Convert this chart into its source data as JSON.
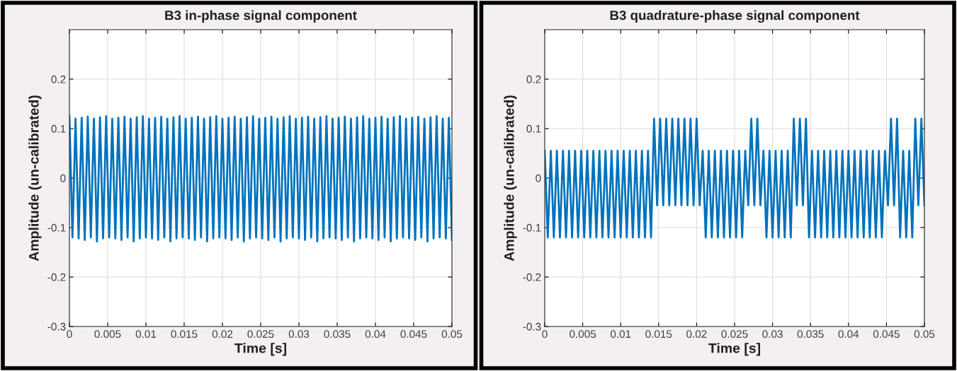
{
  "chart_data": [
    {
      "type": "line",
      "title": "B3 in-phase signal component",
      "xlabel": "Time [s]",
      "ylabel": "Amplitude (un-calibrated)",
      "xlim": [
        0,
        0.05
      ],
      "ylim": [
        -0.3,
        0.3
      ],
      "xticks": [
        0,
        0.005,
        0.01,
        0.015,
        0.02,
        0.025,
        0.03,
        0.035,
        0.04,
        0.045,
        0.05
      ],
      "yticks": [
        -0.3,
        -0.2,
        -0.1,
        0,
        0.1,
        0.2
      ],
      "grid": true,
      "x": [
        0,
        0.0004,
        0.0008,
        0.0012,
        0.0016,
        0.002,
        0.0024,
        0.0028,
        0.0032,
        0.0036,
        0.004,
        0.0044,
        0.0048,
        0.0052,
        0.0056,
        0.006,
        0.0064,
        0.0068,
        0.0072,
        0.0076,
        0.008,
        0.0084,
        0.0088,
        0.0092,
        0.0096,
        0.01,
        0.0104,
        0.0108,
        0.0112,
        0.0116,
        0.012,
        0.0124,
        0.0128,
        0.0132,
        0.0136,
        0.014,
        0.0144,
        0.0148,
        0.0152,
        0.0156,
        0.016,
        0.0164,
        0.0168,
        0.0172,
        0.0176,
        0.018,
        0.0184,
        0.0188,
        0.0192,
        0.0196,
        0.02,
        0.0204,
        0.0208,
        0.0212,
        0.0216,
        0.022,
        0.0224,
        0.0228,
        0.0232,
        0.0236,
        0.024,
        0.0244,
        0.0248,
        0.0252,
        0.0256,
        0.026,
        0.0264,
        0.0268,
        0.0272,
        0.0276,
        0.028,
        0.0284,
        0.0288,
        0.0292,
        0.0296,
        0.03,
        0.0304,
        0.0308,
        0.0312,
        0.0316,
        0.032,
        0.0324,
        0.0328,
        0.0332,
        0.0336,
        0.034,
        0.0344,
        0.0348,
        0.0352,
        0.0356,
        0.036,
        0.0364,
        0.0368,
        0.0372,
        0.0376,
        0.038,
        0.0384,
        0.0388,
        0.0392,
        0.0396,
        0.04,
        0.0404,
        0.0408,
        0.0412,
        0.0416,
        0.042,
        0.0424,
        0.0428,
        0.0432,
        0.0436,
        0.044,
        0.0444,
        0.0448,
        0.0452,
        0.0456,
        0.046,
        0.0464,
        0.0468,
        0.0472,
        0.0476,
        0.048,
        0.0484,
        0.0488,
        0.0492,
        0.0496,
        0.05
      ],
      "series": [
        {
          "color": "#0072bd",
          "values": [
            0.125,
            -0.12,
            0.12,
            -0.122,
            0.122,
            -0.125,
            0.124,
            -0.12,
            0.12,
            -0.128,
            0.123,
            -0.122,
            0.125,
            -0.12,
            0.12,
            -0.122,
            0.122,
            -0.125,
            0.124,
            -0.12,
            0.12,
            -0.128,
            0.123,
            -0.122,
            0.125,
            -0.12,
            0.12,
            -0.122,
            0.122,
            -0.125,
            0.124,
            -0.12,
            0.12,
            -0.128,
            0.123,
            -0.122,
            0.125,
            -0.12,
            0.12,
            -0.122,
            0.122,
            -0.125,
            0.124,
            -0.12,
            0.12,
            -0.128,
            0.123,
            -0.122,
            0.125,
            -0.12,
            0.12,
            -0.122,
            0.122,
            -0.125,
            0.124,
            -0.12,
            0.12,
            -0.128,
            0.123,
            -0.122,
            0.125,
            -0.12,
            0.12,
            -0.122,
            0.122,
            -0.125,
            0.124,
            -0.12,
            0.12,
            -0.128,
            0.123,
            -0.122,
            0.125,
            -0.12,
            0.12,
            -0.122,
            0.122,
            -0.125,
            0.124,
            -0.12,
            0.12,
            -0.128,
            0.123,
            -0.122,
            0.125,
            -0.12,
            0.12,
            -0.122,
            0.122,
            -0.125,
            0.124,
            -0.12,
            0.12,
            -0.128,
            0.123,
            -0.122,
            0.125,
            -0.12,
            0.12,
            -0.122,
            0.122,
            -0.125,
            0.124,
            -0.12,
            0.12,
            -0.128,
            0.123,
            -0.122,
            0.125,
            -0.12,
            0.12,
            -0.122,
            0.122,
            -0.125,
            0.124,
            -0.12,
            0.12,
            -0.128,
            0.123,
            -0.122,
            0.125,
            -0.12,
            0.12,
            -0.122,
            0.122,
            -0.125
          ]
        }
      ]
    },
    {
      "type": "line",
      "title": "B3 quadrature-phase signal component",
      "xlabel": "Time [s]",
      "ylabel": "Amplitude (un-calibrated)",
      "xlim": [
        0,
        0.05
      ],
      "ylim": [
        -0.3,
        0.3
      ],
      "xticks": [
        0,
        0.005,
        0.01,
        0.015,
        0.02,
        0.025,
        0.03,
        0.035,
        0.04,
        0.045,
        0.05
      ],
      "yticks": [
        -0.3,
        -0.2,
        -0.1,
        0,
        0.1,
        0.2
      ],
      "grid": true,
      "x": [
        0,
        0.0004,
        0.0008,
        0.0012,
        0.0016,
        0.002,
        0.0024,
        0.0028,
        0.0032,
        0.0036,
        0.004,
        0.0044,
        0.0048,
        0.0052,
        0.0056,
        0.006,
        0.0064,
        0.0068,
        0.0072,
        0.0076,
        0.008,
        0.0084,
        0.0088,
        0.0092,
        0.0096,
        0.01,
        0.0104,
        0.0108,
        0.0112,
        0.0116,
        0.012,
        0.0124,
        0.0128,
        0.0132,
        0.0136,
        0.014,
        0.0144,
        0.0148,
        0.0152,
        0.0156,
        0.016,
        0.0164,
        0.0168,
        0.0172,
        0.0176,
        0.018,
        0.0184,
        0.0188,
        0.0192,
        0.0196,
        0.02,
        0.0204,
        0.0208,
        0.0212,
        0.0216,
        0.022,
        0.0224,
        0.0228,
        0.0232,
        0.0236,
        0.024,
        0.0244,
        0.0248,
        0.0252,
        0.0256,
        0.026,
        0.0264,
        0.0268,
        0.0272,
        0.0276,
        0.028,
        0.0284,
        0.0288,
        0.0292,
        0.0296,
        0.03,
        0.0304,
        0.0308,
        0.0312,
        0.0316,
        0.032,
        0.0324,
        0.0328,
        0.0332,
        0.0336,
        0.034,
        0.0344,
        0.0348,
        0.0352,
        0.0356,
        0.036,
        0.0364,
        0.0368,
        0.0372,
        0.0376,
        0.038,
        0.0384,
        0.0388,
        0.0392,
        0.0396,
        0.04,
        0.0404,
        0.0408,
        0.0412,
        0.0416,
        0.042,
        0.0424,
        0.0428,
        0.0432,
        0.0436,
        0.044,
        0.0444,
        0.0448,
        0.0452,
        0.0456,
        0.046,
        0.0464,
        0.0468,
        0.0472,
        0.0476,
        0.048,
        0.0484,
        0.0488,
        0.0492,
        0.0496,
        0.05
      ],
      "series": [
        {
          "color": "#0072bd",
          "values": [
            0.055,
            -0.12,
            0.055,
            -0.12,
            0.055,
            -0.12,
            0.055,
            -0.12,
            0.055,
            -0.12,
            0.055,
            -0.12,
            0.055,
            -0.12,
            0.055,
            -0.12,
            0.055,
            -0.12,
            0.055,
            -0.12,
            0.055,
            -0.12,
            0.055,
            -0.12,
            0.055,
            -0.12,
            0.055,
            -0.12,
            0.055,
            -0.12,
            0.055,
            -0.12,
            0.055,
            -0.12,
            0.055,
            -0.12,
            0.12,
            -0.055,
            0.12,
            -0.055,
            0.12,
            -0.055,
            0.12,
            -0.055,
            0.12,
            -0.055,
            0.12,
            -0.055,
            0.12,
            -0.055,
            0.12,
            -0.055,
            0.055,
            -0.12,
            0.055,
            -0.12,
            0.055,
            -0.12,
            0.055,
            -0.12,
            0.055,
            -0.12,
            0.055,
            -0.12,
            0.055,
            -0.12,
            0.055,
            -0.055,
            0.12,
            -0.055,
            0.12,
            -0.055,
            0.055,
            -0.12,
            0.055,
            -0.12,
            0.055,
            -0.12,
            0.055,
            -0.12,
            0.055,
            -0.12,
            0.12,
            -0.055,
            0.12,
            -0.055,
            0.12,
            -0.12,
            0.055,
            -0.12,
            0.055,
            -0.12,
            0.055,
            -0.12,
            0.055,
            -0.12,
            0.055,
            -0.12,
            0.055,
            -0.12,
            0.055,
            -0.12,
            0.055,
            -0.12,
            0.055,
            -0.12,
            0.055,
            -0.12,
            0.055,
            -0.12,
            0.055,
            -0.12,
            0.055,
            -0.055,
            0.12,
            -0.055,
            0.12,
            -0.12,
            0.055,
            -0.12,
            0.055,
            -0.12,
            0.12,
            -0.055,
            0.12,
            -0.055
          ]
        }
      ]
    }
  ]
}
